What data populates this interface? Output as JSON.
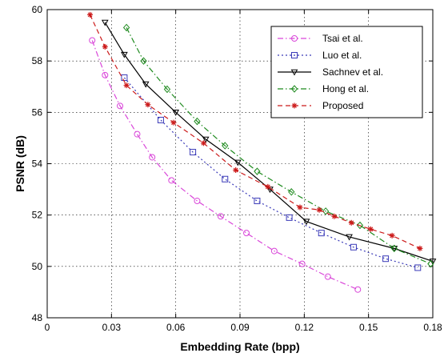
{
  "chart_data": {
    "type": "line",
    "title": "",
    "xlabel": "Embedding Rate (bpp)",
    "ylabel": "PSNR (dB)",
    "xlim": [
      0,
      0.18
    ],
    "ylim": [
      48,
      60
    ],
    "xticks": [
      0,
      0.03,
      0.06,
      0.09,
      0.12,
      0.15,
      0.18
    ],
    "xtick_labels": [
      "0",
      "0.03",
      "0.06",
      "0.09",
      "0.12",
      "0.15",
      "0.18"
    ],
    "yticks": [
      48,
      50,
      52,
      54,
      56,
      58,
      60
    ],
    "ytick_labels": [
      "48",
      "50",
      "52",
      "54",
      "56",
      "58",
      "60"
    ],
    "grid": true,
    "legend_position": "top-right",
    "series": [
      {
        "name": "Tsai et al.",
        "color": "#d946d9",
        "dash": "dashdot",
        "marker": "circle",
        "x": [
          0.021,
          0.027,
          0.034,
          0.042,
          0.049,
          0.058,
          0.07,
          0.081,
          0.093,
          0.106,
          0.119,
          0.131,
          0.145
        ],
        "y": [
          58.8,
          57.45,
          56.25,
          55.15,
          54.25,
          53.35,
          52.55,
          51.95,
          51.3,
          50.6,
          50.1,
          49.6,
          49.1
        ]
      },
      {
        "name": "Luo et al.",
        "color": "#3a3ab8",
        "dash": "dotted",
        "marker": "square",
        "x": [
          0.036,
          0.053,
          0.068,
          0.083,
          0.098,
          0.113,
          0.128,
          0.143,
          0.158,
          0.173
        ],
        "y": [
          57.35,
          55.7,
          54.45,
          53.4,
          52.55,
          51.9,
          51.3,
          50.75,
          50.3,
          49.95
        ]
      },
      {
        "name": "Sachnev et al.",
        "color": "#000000",
        "dash": "solid",
        "marker": "triangle-down",
        "x": [
          0.027,
          0.036,
          0.046,
          0.06,
          0.074,
          0.089,
          0.104,
          0.121,
          0.141,
          0.162,
          0.18
        ],
        "y": [
          59.5,
          58.25,
          57.1,
          56.0,
          54.95,
          54.05,
          53.0,
          51.75,
          51.15,
          50.7,
          50.2
        ]
      },
      {
        "name": "Hong et al.",
        "color": "#1e8a1e",
        "dash": "dashdot",
        "marker": "diamond",
        "x": [
          0.037,
          0.045,
          0.056,
          0.07,
          0.083,
          0.098,
          0.114,
          0.13,
          0.146,
          0.162,
          0.179
        ],
        "y": [
          59.3,
          58.0,
          56.9,
          55.65,
          54.7,
          53.7,
          52.9,
          52.15,
          51.6,
          50.7,
          50.1
        ]
      },
      {
        "name": "Proposed",
        "color": "#cc1b1b",
        "dash": "dashed",
        "marker": "star",
        "x": [
          0.02,
          0.027,
          0.037,
          0.047,
          0.059,
          0.073,
          0.088,
          0.103,
          0.118,
          0.127,
          0.134,
          0.142,
          0.151,
          0.161,
          0.174
        ],
        "y": [
          59.8,
          58.55,
          57.05,
          56.3,
          55.6,
          54.8,
          53.75,
          53.1,
          52.3,
          52.2,
          51.95,
          51.7,
          51.45,
          51.2,
          50.7
        ]
      }
    ]
  }
}
